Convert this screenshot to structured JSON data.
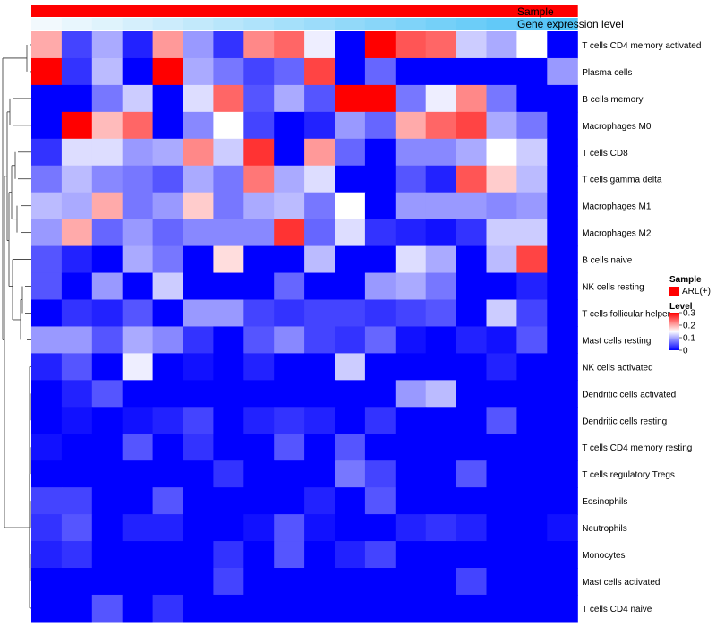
{
  "chart_data": {
    "type": "heatmap",
    "title": "",
    "annotation_rows": [
      "Sample",
      "Gene expression level"
    ],
    "annotation_colors": {
      "Sample": "#FF0000",
      "Gene expression level": [
        "#F2F9FD",
        "#4FC3F7"
      ]
    },
    "columns_count": 18,
    "rows": [
      "T cells CD4 memory activated",
      "Plasma cells",
      "B cells memory",
      "Macrophages M0",
      "T cells CD8",
      "T cells gamma delta",
      "Macrophages M1",
      "Macrophages M2",
      "B cells naive",
      "NK cells resting",
      "T cells follicular helper",
      "Mast cells resting",
      "NK cells activated",
      "Dendritic cells activated",
      "Dendritic cells resting",
      "T cells CD4 memory resting",
      "T cells regulatory  Tregs",
      "Eosinophils",
      "Neutrophils",
      "Monocytes",
      "Mast cells activated",
      "T cells CD4 naive"
    ],
    "values": [
      [
        0.2,
        0.04,
        0.1,
        0.02,
        0.21,
        0.09,
        0.03,
        0.22,
        0.24,
        0.14,
        0.0,
        0.3,
        0.25,
        0.24,
        0.12,
        0.1,
        0.15,
        0.0
      ],
      [
        0.3,
        0.03,
        0.11,
        0.0,
        0.3,
        0.1,
        0.07,
        0.04,
        0.06,
        0.26,
        0.0,
        0.06,
        0.0,
        0.0,
        0.0,
        0.0,
        0.0,
        0.09
      ],
      [
        0.0,
        0.0,
        0.07,
        0.12,
        0.0,
        0.13,
        0.24,
        0.05,
        0.1,
        0.05,
        0.3,
        0.3,
        0.07,
        0.14,
        0.22,
        0.07,
        0.0,
        0.0
      ],
      [
        0.0,
        0.3,
        0.19,
        0.24,
        0.0,
        0.08,
        0.15,
        0.04,
        0.0,
        0.02,
        0.09,
        0.06,
        0.2,
        0.24,
        0.26,
        0.1,
        0.07,
        0.0
      ],
      [
        0.03,
        0.13,
        0.13,
        0.09,
        0.1,
        0.22,
        0.12,
        0.27,
        0.0,
        0.21,
        0.06,
        0.0,
        0.08,
        0.08,
        0.1,
        0.15,
        0.12,
        0.0
      ],
      [
        0.07,
        0.11,
        0.08,
        0.07,
        0.05,
        0.1,
        0.07,
        0.23,
        0.1,
        0.13,
        0.0,
        0.0,
        0.05,
        0.02,
        0.25,
        0.18,
        0.11,
        0.0
      ],
      [
        0.11,
        0.1,
        0.2,
        0.07,
        0.09,
        0.18,
        0.07,
        0.1,
        0.11,
        0.07,
        0.15,
        0.0,
        0.09,
        0.09,
        0.09,
        0.08,
        0.09,
        0.0
      ],
      [
        0.09,
        0.2,
        0.06,
        0.09,
        0.06,
        0.08,
        0.08,
        0.08,
        0.27,
        0.06,
        0.13,
        0.03,
        0.02,
        0.01,
        0.03,
        0.12,
        0.12,
        0.0
      ],
      [
        0.05,
        0.02,
        0.0,
        0.1,
        0.07,
        0.0,
        0.17,
        0.0,
        0.0,
        0.11,
        0.0,
        0.0,
        0.13,
        0.1,
        0.0,
        0.11,
        0.26,
        0.0
      ],
      [
        0.05,
        0.0,
        0.09,
        0.0,
        0.12,
        0.0,
        0.0,
        0.0,
        0.06,
        0.0,
        0.0,
        0.09,
        0.1,
        0.07,
        0.0,
        0.0,
        0.02,
        0.0
      ],
      [
        0.0,
        0.03,
        0.02,
        0.05,
        0.0,
        0.09,
        0.09,
        0.04,
        0.03,
        0.04,
        0.04,
        0.03,
        0.04,
        0.05,
        0.0,
        0.12,
        0.04,
        0.0
      ],
      [
        0.09,
        0.09,
        0.05,
        0.1,
        0.08,
        0.03,
        0.0,
        0.05,
        0.08,
        0.04,
        0.03,
        0.06,
        0.01,
        0.0,
        0.02,
        0.01,
        0.05,
        0.0
      ],
      [
        0.02,
        0.05,
        0.0,
        0.14,
        0.0,
        0.01,
        0.0,
        0.02,
        0.0,
        0.0,
        0.12,
        0.0,
        0.0,
        0.0,
        0.0,
        0.02,
        0.0,
        0.0
      ],
      [
        0.0,
        0.02,
        0.05,
        0.0,
        0.0,
        0.0,
        0.0,
        0.0,
        0.0,
        0.0,
        0.0,
        0.0,
        0.09,
        0.11,
        0.0,
        0.0,
        0.0,
        0.0
      ],
      [
        0.0,
        0.01,
        0.0,
        0.01,
        0.02,
        0.04,
        0.0,
        0.02,
        0.03,
        0.02,
        0.0,
        0.03,
        0.0,
        0.0,
        0.0,
        0.05,
        0.0,
        0.0
      ],
      [
        0.01,
        0.0,
        0.0,
        0.05,
        0.0,
        0.03,
        0.0,
        0.0,
        0.05,
        0.0,
        0.05,
        0.0,
        0.0,
        0.0,
        0.0,
        0.0,
        0.0,
        0.0
      ],
      [
        0.0,
        0.0,
        0.0,
        0.0,
        0.0,
        0.0,
        0.03,
        0.0,
        0.0,
        0.0,
        0.07,
        0.04,
        0.0,
        0.0,
        0.05,
        0.0,
        0.0,
        0.0
      ],
      [
        0.04,
        0.04,
        0.0,
        0.0,
        0.05,
        0.0,
        0.0,
        0.0,
        0.0,
        0.02,
        0.0,
        0.05,
        0.0,
        0.0,
        0.0,
        0.0,
        0.0,
        0.0
      ],
      [
        0.03,
        0.05,
        0.0,
        0.02,
        0.02,
        0.0,
        0.0,
        0.01,
        0.05,
        0.01,
        0.0,
        0.0,
        0.02,
        0.03,
        0.02,
        0.0,
        0.0,
        0.01
      ],
      [
        0.02,
        0.03,
        0.0,
        0.0,
        0.0,
        0.0,
        0.03,
        0.0,
        0.05,
        0.0,
        0.02,
        0.04,
        0.0,
        0.0,
        0.0,
        0.0,
        0.0,
        0.0
      ],
      [
        0.0,
        0.0,
        0.0,
        0.0,
        0.0,
        0.0,
        0.04,
        0.0,
        0.0,
        0.0,
        0.0,
        0.0,
        0.0,
        0.0,
        0.04,
        0.0,
        0.0,
        0.0
      ],
      [
        0.0,
        0.0,
        0.05,
        0.0,
        0.03,
        0.0,
        0.0,
        0.0,
        0.0,
        0.0,
        0.0,
        0.0,
        0.0,
        0.0,
        0.0,
        0.0,
        0.0,
        0.0
      ]
    ],
    "scale": {
      "min": 0,
      "max": 0.3,
      "colors": [
        "#0000FF",
        "#FFFFFF",
        "#FF0000"
      ]
    },
    "legend": {
      "sample_title": "Sample",
      "sample_entry": "ARL(+)",
      "level_title": "Level",
      "ticks": [
        {
          "value": 0.3,
          "label": "0.3"
        },
        {
          "value": 0.2,
          "label": "0.2"
        },
        {
          "value": 0.1,
          "label": "0.1"
        },
        {
          "value": 0,
          "label": "0"
        }
      ],
      "placement": "right"
    },
    "dendrogram": "rows"
  }
}
